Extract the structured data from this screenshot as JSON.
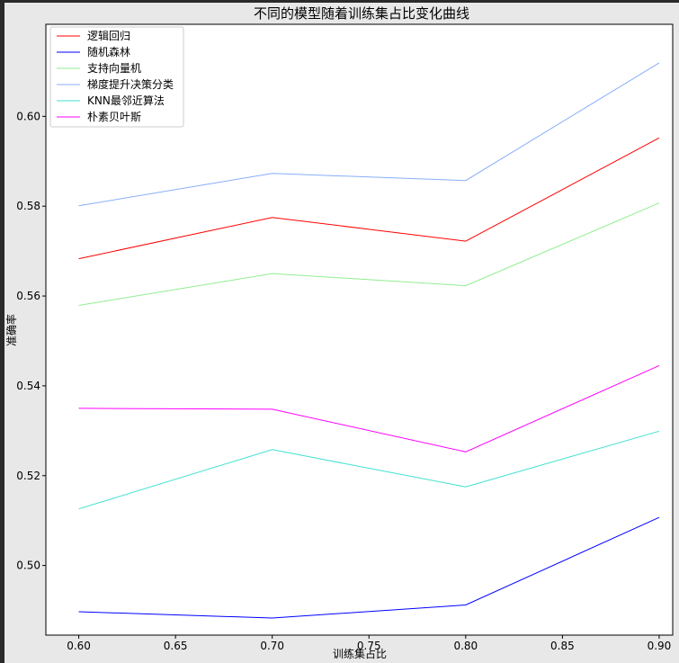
{
  "chart_data": {
    "type": "line",
    "title": "不同的模型随着训练集占比变化曲线",
    "xlabel": "训练集占比",
    "ylabel": "准确率",
    "x": [
      0.6,
      0.7,
      0.8,
      0.9
    ],
    "xlim": [
      0.583,
      0.907
    ],
    "ylim": [
      0.4845,
      0.6205
    ],
    "xticks": [
      0.6,
      0.65,
      0.7,
      0.75,
      0.8,
      0.85,
      0.9
    ],
    "xtick_labels": [
      "0.60",
      "0.65",
      "0.70",
      "0.75",
      "0.80",
      "0.85",
      "0.90"
    ],
    "yticks": [
      0.5,
      0.52,
      0.54,
      0.56,
      0.58,
      0.6
    ],
    "ytick_labels": [
      "0.50",
      "0.52",
      "0.54",
      "0.56",
      "0.58",
      "0.60"
    ],
    "grid": false,
    "legend_position": "top-left",
    "series": [
      {
        "name": "逻辑回归",
        "color": "#ff0000",
        "values": [
          0.5683,
          0.5775,
          0.5722,
          0.5952
        ]
      },
      {
        "name": "随机森林",
        "color": "#0000ff",
        "values": [
          0.4897,
          0.4883,
          0.4912,
          0.5107
        ]
      },
      {
        "name": "支持向量机",
        "color": "#90ee90",
        "values": [
          0.5579,
          0.565,
          0.5623,
          0.5807
        ]
      },
      {
        "name": "梯度提升决策分类",
        "color": "#87aefa",
        "values": [
          0.5801,
          0.5873,
          0.5857,
          0.6119
        ]
      },
      {
        "name": "KNN最邻近算法",
        "color": "#40e0d0",
        "values": [
          0.5126,
          0.5258,
          0.5175,
          0.5299
        ]
      },
      {
        "name": "朴素贝叶斯",
        "color": "#ff00ff",
        "values": [
          0.535,
          0.5348,
          0.5253,
          0.5445
        ]
      }
    ]
  }
}
